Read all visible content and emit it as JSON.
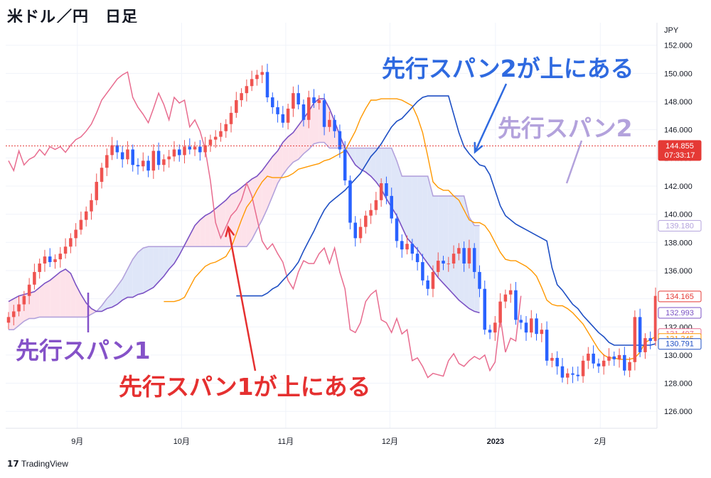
{
  "title": "米ドル／円　日足",
  "brand": "TradingView",
  "currency_label": "JPY",
  "colors": {
    "up": "#ef5350",
    "down": "#2962ff",
    "tenkan": "#ff9800",
    "kijun": "#1e4fc4",
    "chikou": "#e86c8f",
    "senkouA": "#7b52c4",
    "senkouB": "#b3a2dc",
    "cloudA": "#fde2ea",
    "cloudB": "#dfe6f8",
    "price_line": "#e53935",
    "annot_red": "#e53030",
    "annot_blue": "#2f6ae0",
    "annot_purple": "#8552c8",
    "annot_lavender": "#b3a2dc"
  },
  "annotations": {
    "span2_above": "先行スパン2が上にある",
    "span2": "先行スパン2",
    "span1": "先行スパン1",
    "span1_above": "先行スパン1が上にある"
  },
  "chart_data": {
    "type": "candlestick",
    "title": "米ドル／円　日足",
    "ylim": [
      124.8,
      153.6
    ],
    "y_ticks": [
      "126.000",
      "128.000",
      "130.000",
      "132.000",
      "134.000",
      "136.000",
      "138.000",
      "140.000",
      "142.000",
      "144.000",
      "146.000",
      "148.000",
      "150.000",
      "152.000"
    ],
    "x_ticks": [
      "9月",
      "10月",
      "11月",
      "12月",
      "2023",
      "2月"
    ],
    "price_line": 144.855,
    "price_labels": [
      {
        "text": "144.855",
        "sub": "07:33:17",
        "value": 144.855,
        "color": "#e53935",
        "filled": true
      },
      {
        "text": "139.180",
        "value": 139.18,
        "color": "#b3a2dc",
        "filled": false
      },
      {
        "text": "134.165",
        "value": 134.165,
        "color": "#e53935",
        "filled": false
      },
      {
        "text": "132.993",
        "value": 132.993,
        "color": "#7b52c4",
        "filled": false
      },
      {
        "text": "131.497",
        "value": 131.497,
        "color": "#e86c8f",
        "filled": false
      },
      {
        "text": "131.345",
        "value": 131.345,
        "color": "#ff9800",
        "filled": false
      },
      {
        "text": "130.791",
        "value": 130.791,
        "color": "#1e4fc4",
        "filled": false
      }
    ],
    "closes": [
      132.7,
      133.1,
      133.6,
      134.2,
      135.0,
      135.9,
      136.5,
      137.0,
      136.6,
      136.8,
      137.2,
      137.7,
      138.3,
      138.9,
      139.6,
      140.2,
      141.0,
      142.3,
      143.3,
      144.2,
      144.9,
      144.4,
      143.9,
      144.6,
      143.5,
      143.4,
      143.8,
      143.1,
      144.5,
      143.5,
      143.9,
      144.1,
      144.6,
      144.2,
      144.8,
      144.6,
      144.8,
      144.4,
      144.9,
      145.3,
      145.5,
      145.9,
      146.4,
      147.2,
      148.1,
      148.6,
      149.1,
      149.6,
      149.9,
      150.1,
      148.3,
      147.6,
      147.1,
      146.5,
      147.5,
      148.6,
      147.8,
      146.7,
      148.3,
      147.9,
      148.1,
      146.2,
      146.7,
      145.9,
      144.6,
      142.4,
      139.4,
      138.3,
      139.1,
      139.9,
      140.3,
      141.0,
      142.2,
      141.3,
      139.7,
      138.1,
      137.5,
      137.9,
      137.2,
      136.6,
      135.3,
      134.7,
      135.9,
      136.7,
      136.5,
      136.5,
      137.2,
      137.6,
      136.5,
      137.6,
      135.9,
      134.7,
      131.8,
      131.6,
      132.3,
      133.8,
      134.3,
      134.6,
      132.5,
      132.3,
      131.6,
      132.6,
      131.5,
      131.8,
      129.6,
      129.8,
      129.2,
      128.4,
      128.7,
      128.6,
      128.5,
      129.6,
      130.1,
      129.4,
      129.2,
      129.6,
      129.9,
      129.7,
      130.0,
      128.9,
      129.5,
      132.7,
      130.2,
      131.2,
      131.0,
      134.2
    ],
    "senkou_a": [
      133.8,
      134.0,
      134.2,
      134.3,
      134.4,
      134.5,
      134.8,
      135.1,
      135.3,
      135.6,
      135.9,
      136.1,
      135.8,
      135.0,
      134.3,
      133.7,
      133.3,
      133.1,
      133.1,
      133.3,
      133.4,
      133.6,
      133.9,
      134.1,
      134.1,
      134.3,
      134.4,
      134.6,
      134.8,
      135.2,
      135.6,
      136.1,
      136.5,
      137.1,
      137.8,
      138.5,
      139.2,
      139.6,
      139.9,
      140.1,
      140.4,
      140.7,
      141.0,
      141.4,
      141.6,
      141.9,
      142.2,
      142.5,
      142.7,
      143.1,
      143.6,
      144.1,
      144.5,
      145.1,
      145.5,
      145.8,
      146.3,
      146.8,
      147.3,
      147.9,
      148.2,
      148.2,
      147.5,
      146.6,
      145.6,
      144.7,
      144.1,
      143.5,
      143.2,
      143.0,
      142.7,
      142.3,
      141.8,
      141.1,
      140.5,
      139.9,
      139.1,
      138.3,
      137.9,
      137.5,
      137.0,
      136.5,
      136.0,
      135.5,
      135.1,
      134.7,
      134.3,
      133.9,
      133.6,
      133.3,
      133.1,
      133.0
    ],
    "senkou_b": [
      131.8,
      131.8,
      132.1,
      132.4,
      132.6,
      132.6,
      132.7,
      132.7,
      132.7,
      132.7,
      132.7,
      132.7,
      132.7,
      132.7,
      132.7,
      132.7,
      132.9,
      133.1,
      133.5,
      134.0,
      134.4,
      134.9,
      135.4,
      136.1,
      136.8,
      137.3,
      137.6,
      137.7,
      137.7,
      137.7,
      137.7,
      137.7,
      137.7,
      137.7,
      137.7,
      137.7,
      137.7,
      137.7,
      137.7,
      137.7,
      137.7,
      137.7,
      137.7,
      137.7,
      137.7,
      137.7,
      137.7,
      138.2,
      138.9,
      139.6,
      140.4,
      141.3,
      142.2,
      142.8,
      143.3,
      143.7,
      143.9,
      144.3,
      144.6,
      145.0,
      145.1,
      145.1,
      144.7,
      144.7,
      144.7,
      144.7,
      144.7,
      144.7,
      144.7,
      144.7,
      144.7,
      144.7,
      144.7,
      144.7,
      144.7,
      143.8,
      142.7,
      142.7,
      142.7,
      142.7,
      142.7,
      142.7,
      141.3,
      141.3,
      141.3,
      141.3,
      141.3,
      141.3,
      141.3,
      139.8,
      139.2,
      139.2
    ],
    "tenkan": [
      133.8,
      133.8,
      133.8,
      133.9,
      134.1,
      134.8,
      135.5,
      135.9,
      136.3,
      136.5,
      136.6,
      136.8,
      137.0,
      137.6,
      138.6,
      139.6,
      140.5,
      141.0,
      141.7,
      142.3,
      142.7,
      142.6,
      142.6,
      142.6,
      142.7,
      142.9,
      143.2,
      143.3,
      143.4,
      143.5,
      143.6,
      143.8,
      143.9,
      144.1,
      144.3,
      144.5,
      145.2,
      145.9,
      146.8,
      147.5,
      148.1,
      148.1,
      148.2,
      148.2,
      148.2,
      148.2,
      148.1,
      147.9,
      147.7,
      146.9,
      145.8,
      144.1,
      142.3,
      141.9,
      141.7,
      141.7,
      141.3,
      141.0,
      140.3,
      139.6,
      139.4,
      139.4,
      139.2,
      138.7,
      138.0,
      137.3,
      136.8,
      136.7,
      136.7,
      136.5,
      136.3,
      136.0,
      135.6,
      134.8,
      133.9,
      133.6,
      133.5,
      133.5,
      133.3,
      133.0,
      132.6,
      132.2,
      131.6,
      131.0,
      130.4,
      130.0,
      129.8,
      129.8,
      129.7,
      129.7,
      129.7,
      129.8,
      130.2,
      130.9,
      131.1,
      131.3
    ],
    "kijun": [
      134.2,
      134.2,
      134.2,
      134.2,
      134.2,
      134.2,
      134.4,
      134.7,
      134.9,
      135.3,
      135.7,
      136.1,
      136.6,
      137.4,
      138.1,
      138.8,
      139.6,
      140.3,
      140.8,
      141.1,
      141.4,
      141.7,
      142.1,
      142.5,
      142.9,
      143.5,
      144.1,
      144.5,
      145.0,
      145.6,
      146.2,
      146.6,
      146.8,
      147.2,
      147.6,
      148.0,
      148.3,
      148.4,
      148.4,
      148.4,
      148.4,
      148.4,
      147.1,
      145.8,
      144.8,
      144.3,
      143.9,
      143.5,
      143.4,
      142.8,
      141.7,
      140.6,
      139.9,
      139.6,
      139.3,
      139.1,
      138.9,
      138.7,
      138.5,
      138.3,
      138.1,
      136.2,
      135.0,
      134.6,
      134.1,
      133.6,
      133.3,
      132.8,
      132.4,
      132.0,
      131.6,
      131.3,
      130.9,
      130.7,
      130.7,
      130.7,
      130.7,
      130.7,
      130.7,
      130.7,
      130.7,
      130.8
    ]
  }
}
